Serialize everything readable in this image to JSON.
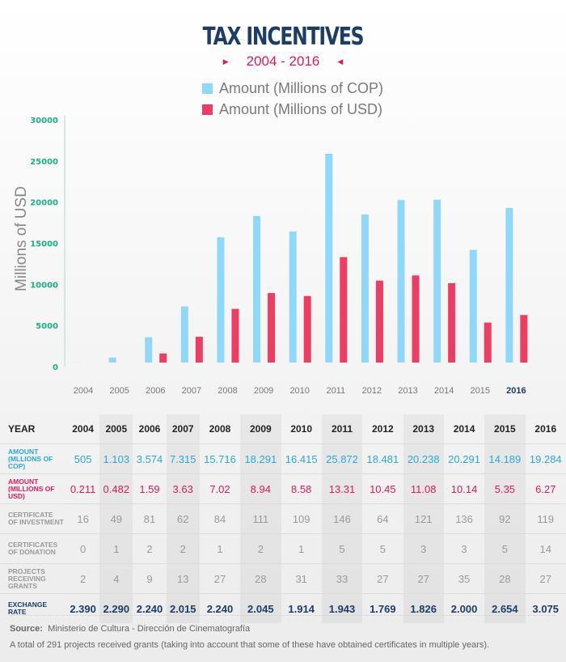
{
  "title": "TAX INCENTIVES",
  "subtitle": "2004 - 2016",
  "colors": {
    "cop": "#8fd8f8",
    "usd": "#ee3d63",
    "axis_ticks": "#19b08a",
    "title": "#1b3d66",
    "accent": "#e0195e"
  },
  "chart_data": {
    "type": "bar",
    "title": "TAX INCENTIVES 2004 - 2016",
    "xlabel": "",
    "ylabel": "Millions of USD",
    "ylim": [
      0,
      30000
    ],
    "yticks": [
      "0",
      "5000",
      "10000",
      "15000",
      "20000",
      "25000",
      "30000"
    ],
    "categories": [
      "2004",
      "2005",
      "2006",
      "2007",
      "2008",
      "2009",
      "2010",
      "2011",
      "2012",
      "2013",
      "2014",
      "2015",
      "2016"
    ],
    "highlight_category": "2016",
    "legend_position": "top-center",
    "grid": false,
    "series": [
      {
        "name": "Amount (Millions of COP)",
        "values": [
          505,
          1103,
          3574,
          7315,
          15716,
          18291,
          16415,
          25872,
          18481,
          20238,
          20291,
          14189,
          19284
        ]
      },
      {
        "name": "Amount (Millions of USD)",
        "values": [
          211,
          482,
          1590,
          3630,
          7020,
          8940,
          8580,
          13310,
          10450,
          11080,
          10140,
          5350,
          6270
        ]
      }
    ]
  },
  "table": {
    "headers": {
      "year": "YEAR"
    },
    "years": [
      "2004",
      "2005",
      "2006",
      "2007",
      "2008",
      "2009",
      "2010",
      "2011",
      "2012",
      "2013",
      "2014",
      "2015",
      "2016"
    ],
    "rows": [
      {
        "label1": "AMOUNT",
        "label2": "(MLLIONS OF COP)",
        "values": [
          "505",
          "1.103",
          "3.574",
          "7.315",
          "15.716",
          "18.291",
          "16.415",
          "25.872",
          "18.481",
          "20.238",
          "20.291",
          "14.189",
          "19.284"
        ]
      },
      {
        "label1": "AMOUNT",
        "label2": "(MILLIONS OF USD)",
        "values": [
          "0.211",
          "0.482",
          "1.59",
          "3.63",
          "7.02",
          "8.94",
          "8.58",
          "13.31",
          "10.45",
          "11.08",
          "10.14",
          "5.35",
          "6.27"
        ]
      },
      {
        "label1": "CERTIFICATE",
        "label2": "OF INVESTMENT",
        "values": [
          "16",
          "49",
          "81",
          "62",
          "84",
          "111",
          "109",
          "146",
          "64",
          "121",
          "136",
          "92",
          "119"
        ]
      },
      {
        "label1": "CERTIFICATES",
        "label2": "OF DONATION",
        "values": [
          "0",
          "1",
          "2",
          "2",
          "1",
          "2",
          "1",
          "5",
          "5",
          "3",
          "3",
          "5",
          "14"
        ]
      },
      {
        "label1": "PROJECTS",
        "label2": "RECEIVING",
        "label3": "GRANTS",
        "values": [
          "2",
          "4",
          "9",
          "13",
          "27",
          "28",
          "31",
          "33",
          "27",
          "27",
          "35",
          "28",
          "27"
        ]
      },
      {
        "label1": "EXCHANGE",
        "label2": "RATE",
        "values": [
          "2.390",
          "2.290",
          "2.240",
          "2.015",
          "2.240",
          "2.045",
          "1.914",
          "1.943",
          "1.769",
          "1.826",
          "2.000",
          "2.654",
          "3.075"
        ]
      }
    ]
  },
  "footer": {
    "source_label": "Source:",
    "source_text": "Ministerio de Cultura - Dirección de Cinematografía",
    "note": "A total of 291 projects received grants (taking into account that some of these have obtained certificates in multiple years)."
  }
}
